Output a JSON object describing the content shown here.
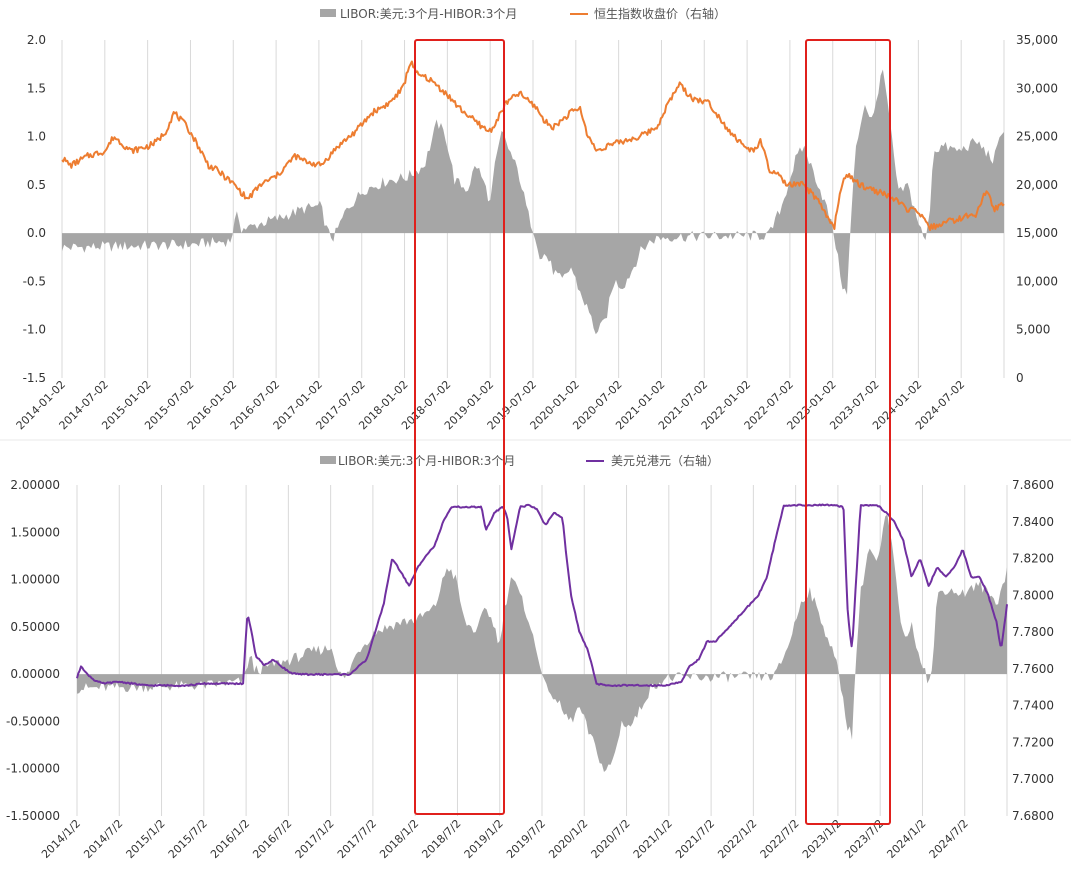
{
  "chart_data": [
    {
      "type": "bar+line",
      "title": "",
      "legend": {
        "position": "top",
        "bar_label": "LIBOR:美元:3个月-HIBOR:3个月",
        "line_label": "恒生指数收盘价（右轴）"
      },
      "colors": {
        "bar": "#a6a6a6",
        "line": "#ed7d31",
        "highlight": "#e0201c",
        "grid": "#d9d9d9"
      },
      "y_left": {
        "min": -1.5,
        "max": 2.0,
        "ticks": [
          "2.0",
          "1.5",
          "1.0",
          "0.5",
          "0.0",
          "-0.5",
          "-1.0",
          "-1.5"
        ]
      },
      "y_right": {
        "min": 0,
        "max": 35000,
        "ticks": [
          "35,000",
          "30,000",
          "25,000",
          "20,000",
          "15,000",
          "10,000",
          "5,000",
          "0"
        ]
      },
      "x_range": [
        2014.0,
        2024.92
      ],
      "x_ticks": [
        "2014-01-02",
        "2014-07-02",
        "2015-01-02",
        "2015-07-02",
        "2016-01-02",
        "2016-07-02",
        "2017-01-02",
        "2017-07-02",
        "2018-01-02",
        "2018-07-02",
        "2019-01-02",
        "2019-07-02",
        "2020-01-02",
        "2020-07-02",
        "2021-01-02",
        "2021-07-02",
        "2022-01-02",
        "2022-07-02",
        "2023-01-02",
        "2023-07-02",
        "2024-01-02",
        "2024-07-02"
      ],
      "spread_series": {
        "name": "LIBOR:美元:3个月-HIBOR:3个月",
        "x": [
          2014.0,
          2014.5,
          2015.0,
          2015.5,
          2015.95,
          2016.0,
          2016.04,
          2016.08,
          2016.15,
          2016.3,
          2016.5,
          2016.8,
          2017.0,
          2017.08,
          2017.15,
          2017.3,
          2017.5,
          2017.8,
          2018.0,
          2018.2,
          2018.35,
          2018.45,
          2018.55,
          2018.62,
          2018.7,
          2018.8,
          2018.9,
          2018.97,
          2019.0,
          2019.1,
          2019.3,
          2019.4,
          2019.5,
          2019.55,
          2019.6,
          2019.7,
          2019.8,
          2019.9,
          2020.0,
          2020.1,
          2020.2,
          2020.3,
          2020.4,
          2020.5,
          2020.6,
          2020.7,
          2020.8,
          2020.9,
          2021.0,
          2021.5,
          2022.0,
          2022.2,
          2022.35,
          2022.45,
          2022.5,
          2022.6,
          2022.7,
          2022.75,
          2022.85,
          2022.95,
          2023.0,
          2023.05,
          2023.1,
          2023.15,
          2023.2,
          2023.3,
          2023.4,
          2023.5,
          2023.55,
          2023.6,
          2023.7,
          2023.8,
          2023.9,
          2024.0,
          2024.05,
          2024.1,
          2024.2,
          2024.4,
          2024.6,
          2024.8,
          2024.92
        ],
        "y": [
          -0.15,
          -0.14,
          -0.13,
          -0.12,
          -0.08,
          0.1,
          0.2,
          0.05,
          0.05,
          0.1,
          0.15,
          0.25,
          0.28,
          0.0,
          -0.05,
          0.25,
          0.45,
          0.55,
          0.58,
          0.7,
          1.15,
          1.0,
          0.55,
          0.5,
          0.45,
          0.72,
          0.5,
          0.3,
          0.6,
          1.05,
          0.6,
          0.2,
          -0.05,
          -0.3,
          -0.2,
          -0.4,
          -0.5,
          -0.35,
          -0.6,
          -0.8,
          -1.05,
          -0.9,
          -0.5,
          -0.55,
          -0.4,
          -0.2,
          -0.1,
          -0.05,
          -0.04,
          -0.03,
          -0.03,
          -0.02,
          0.3,
          0.6,
          0.75,
          0.9,
          0.65,
          0.55,
          0.3,
          0.0,
          -0.3,
          -0.55,
          -0.65,
          0.2,
          0.85,
          1.35,
          1.15,
          1.7,
          1.5,
          1.1,
          0.4,
          0.5,
          0.2,
          -0.1,
          0.1,
          0.85,
          0.9,
          0.85,
          0.95,
          0.75,
          1.1
        ]
      },
      "hsi_series": {
        "name": "恒生指数收盘价（右轴）",
        "x": [
          2014.0,
          2014.1,
          2014.3,
          2014.5,
          2014.6,
          2014.8,
          2015.0,
          2015.1,
          2015.2,
          2015.3,
          2015.45,
          2015.55,
          2015.7,
          2015.8,
          2016.0,
          2016.1,
          2016.15,
          2016.3,
          2016.5,
          2016.7,
          2016.8,
          2017.0,
          2017.2,
          2017.4,
          2017.6,
          2017.8,
          2017.95,
          2018.05,
          2018.1,
          2018.25,
          2018.45,
          2018.6,
          2018.8,
          2018.95,
          2019.0,
          2019.15,
          2019.3,
          2019.5,
          2019.6,
          2019.7,
          2019.9,
          2020.0,
          2020.1,
          2020.2,
          2020.3,
          2020.5,
          2020.7,
          2020.9,
          2021.0,
          2021.1,
          2021.15,
          2021.3,
          2021.5,
          2021.7,
          2021.9,
          2022.0,
          2022.1,
          2022.2,
          2022.3,
          2022.4,
          2022.6,
          2022.75,
          2022.85,
          2022.95,
          2023.05,
          2023.1,
          2023.25,
          2023.4,
          2023.6,
          2023.8,
          2023.95,
          2024.05,
          2024.2,
          2024.4,
          2024.6,
          2024.72,
          2024.8,
          2024.92
        ],
        "y": [
          22800,
          22000,
          23000,
          23500,
          25000,
          23500,
          24000,
          24500,
          25500,
          27500,
          26000,
          24500,
          22000,
          21500,
          20000,
          19000,
          18500,
          20000,
          21000,
          23000,
          22500,
          22000,
          24000,
          25500,
          27500,
          28500,
          30000,
          33000,
          31500,
          31000,
          29500,
          28000,
          26500,
          25500,
          26000,
          28500,
          29500,
          28000,
          26500,
          26000,
          27500,
          28000,
          25000,
          23500,
          24000,
          24500,
          25000,
          26000,
          28000,
          29500,
          30500,
          29000,
          28500,
          26000,
          24000,
          23500,
          24500,
          21500,
          21000,
          20000,
          20000,
          18500,
          17000,
          15500,
          20500,
          21000,
          20000,
          19500,
          18800,
          17500,
          17000,
          15500,
          16000,
          16500,
          17000,
          19500,
          17500,
          18000
        ]
      }
    },
    {
      "type": "bar+line",
      "title": "",
      "legend": {
        "position": "top",
        "bar_label": "LIBOR:美元:3个月-HIBOR:3个月",
        "line_label": "美元兑港元（右轴）"
      },
      "colors": {
        "bar": "#a6a6a6",
        "line": "#7030a0",
        "highlight": "#e0201c",
        "grid": "#d9d9d9"
      },
      "y_left": {
        "min": -1.5,
        "max": 2.0,
        "ticks": [
          "2.00000",
          "1.50000",
          "1.00000",
          "0.50000",
          "0.00000",
          "-0.50000",
          "-1.00000",
          "-1.50000"
        ]
      },
      "y_right": {
        "min": 7.68,
        "max": 7.86,
        "ticks": [
          "7.8600",
          "7.8400",
          "7.8200",
          "7.8000",
          "7.7800",
          "7.7600",
          "7.7400",
          "7.7200",
          "7.7000",
          "7.6800"
        ]
      },
      "x_range": [
        2014.0,
        2024.92
      ],
      "x_ticks": [
        "2014/1/2",
        "2014/7/2",
        "2015/1/2",
        "2015/7/2",
        "2016/1/2",
        "2016/7/2",
        "2017/1/2",
        "2017/7/2",
        "2018/1/2",
        "2018/7/2",
        "2019/1/2",
        "2019/7/2",
        "2020/1/2",
        "2020/7/2",
        "2021/1/2",
        "2021/7/2",
        "2022/1/2",
        "2022/7/2",
        "2023/1/2",
        "2023/7/2",
        "2024/1/2",
        "2024/7/2"
      ],
      "spread_series_ref": 0,
      "usdhkd_series": {
        "name": "美元兑港元（右轴）",
        "x": [
          2014.0,
          2014.05,
          2014.1,
          2014.2,
          2014.3,
          2014.5,
          2014.8,
          2015.0,
          2015.3,
          2015.5,
          2015.7,
          2015.95,
          2016.0,
          2016.05,
          2016.1,
          2016.2,
          2016.3,
          2016.5,
          2016.6,
          2016.8,
          2017.0,
          2017.2,
          2017.4,
          2017.5,
          2017.6,
          2017.7,
          2017.8,
          2017.9,
          2018.0,
          2018.1,
          2018.2,
          2018.3,
          2018.4,
          2018.5,
          2018.6,
          2018.75,
          2018.8,
          2018.9,
          2019.0,
          2019.05,
          2019.1,
          2019.2,
          2019.3,
          2019.4,
          2019.5,
          2019.6,
          2019.7,
          2019.75,
          2019.8,
          2019.9,
          2020.0,
          2020.1,
          2020.2,
          2020.3,
          2020.5,
          2020.7,
          2020.9,
          2021.0,
          2021.1,
          2021.2,
          2021.3,
          2021.4,
          2021.5,
          2021.6,
          2021.7,
          2021.8,
          2021.9,
          2022.0,
          2022.1,
          2022.2,
          2022.3,
          2022.4,
          2022.45,
          2022.5,
          2022.7,
          2022.9,
          2023.0,
          2023.05,
          2023.1,
          2023.2,
          2023.3,
          2023.4,
          2023.5,
          2023.6,
          2023.7,
          2023.8,
          2023.9,
          2024.0,
          2024.1,
          2024.2,
          2024.3,
          2024.4,
          2024.5,
          2024.6,
          2024.7,
          2024.8,
          2024.85,
          2024.92
        ],
        "y": [
          7.755,
          7.762,
          7.758,
          7.754,
          7.752,
          7.753,
          7.751,
          7.751,
          7.751,
          7.752,
          7.752,
          7.752,
          7.79,
          7.78,
          7.767,
          7.762,
          7.765,
          7.758,
          7.757,
          7.757,
          7.757,
          7.757,
          7.765,
          7.78,
          7.795,
          7.82,
          7.813,
          7.805,
          7.815,
          7.822,
          7.827,
          7.84,
          7.848,
          7.848,
          7.848,
          7.848,
          7.835,
          7.845,
          7.848,
          7.843,
          7.825,
          7.848,
          7.849,
          7.847,
          7.838,
          7.845,
          7.842,
          7.82,
          7.8,
          7.78,
          7.77,
          7.752,
          7.751,
          7.751,
          7.751,
          7.751,
          7.751,
          7.752,
          7.753,
          7.762,
          7.765,
          7.775,
          7.775,
          7.78,
          7.785,
          7.79,
          7.795,
          7.8,
          7.81,
          7.83,
          7.849,
          7.849,
          7.849,
          7.849,
          7.849,
          7.849,
          7.848,
          7.79,
          7.77,
          7.849,
          7.849,
          7.849,
          7.845,
          7.84,
          7.83,
          7.81,
          7.82,
          7.805,
          7.815,
          7.81,
          7.815,
          7.825,
          7.81,
          7.81,
          7.8,
          7.785,
          7.77,
          7.795
        ]
      }
    }
  ]
}
